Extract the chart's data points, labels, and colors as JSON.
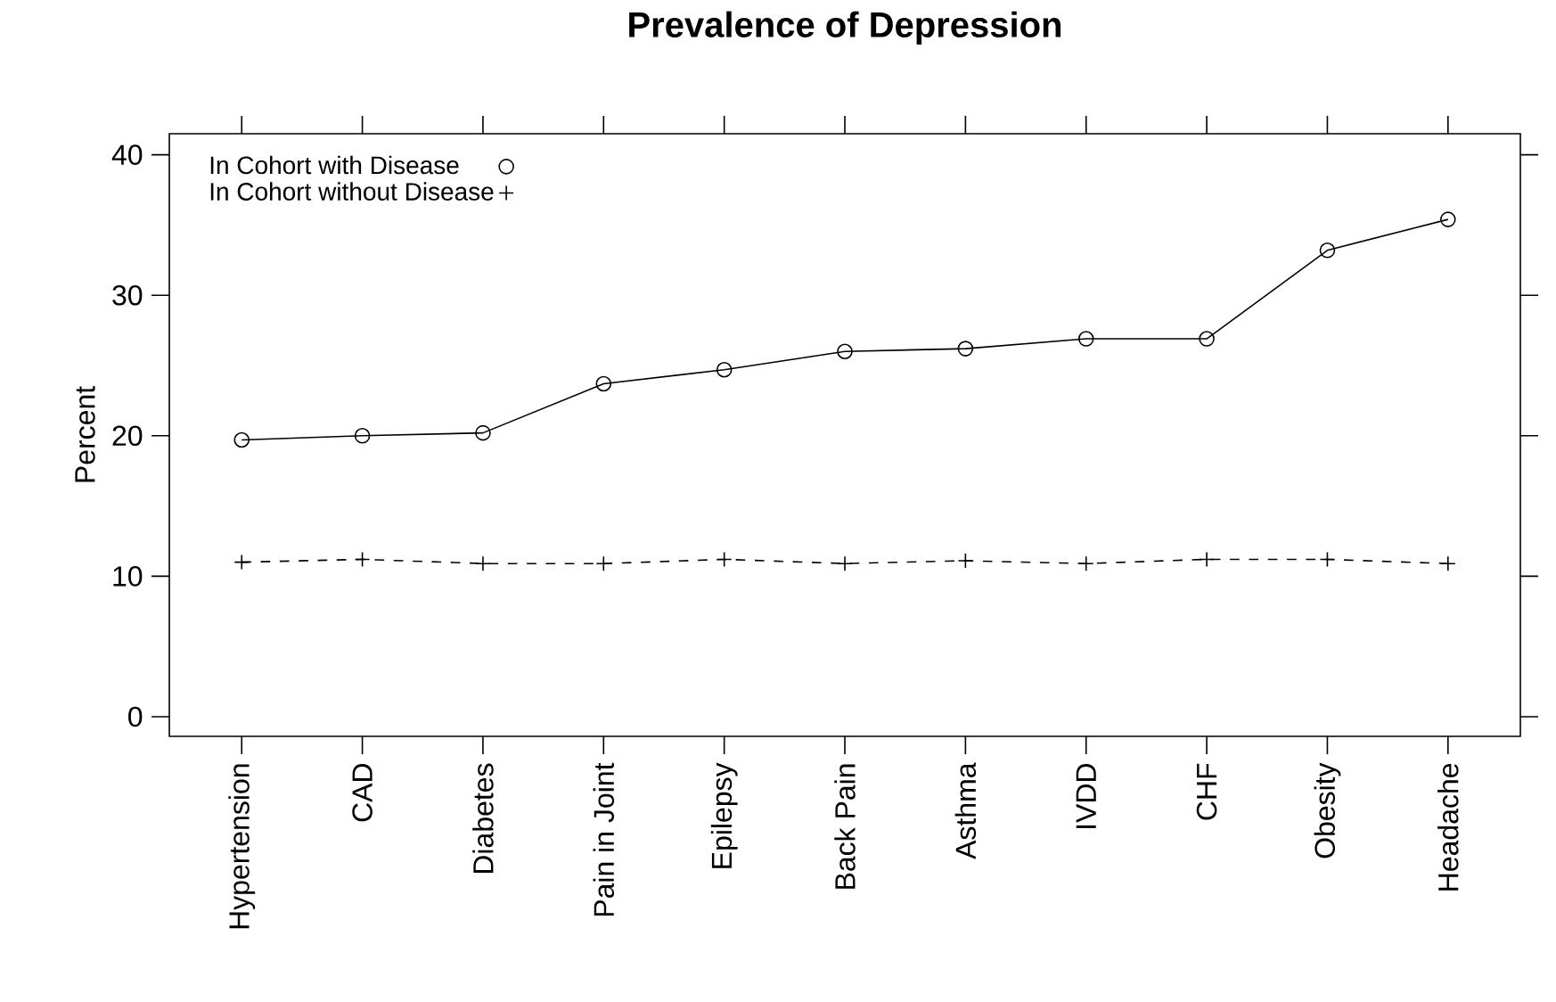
{
  "chart_data": {
    "type": "line",
    "title": "Prevalence of Depression",
    "ylabel": "Percent",
    "categories": [
      "Hypertension",
      "CAD",
      "Diabetes",
      "Pain in Joint",
      "Epilepsy",
      "Back Pain",
      "Asthma",
      "IVDD",
      "CHF",
      "Obesity",
      "Headache"
    ],
    "series": [
      {
        "name": "In Cohort with Disease",
        "color": "#000000",
        "marker": "circle",
        "line_style": "solid",
        "values": [
          19.7,
          20.0,
          20.2,
          23.7,
          24.7,
          26.0,
          26.2,
          26.9,
          26.9,
          33.2,
          35.4
        ]
      },
      {
        "name": "In Cohort without Disease",
        "color": "#000000",
        "marker": "cross",
        "line_style": "dashed",
        "values": [
          11.0,
          11.2,
          10.9,
          10.9,
          11.2,
          10.9,
          11.1,
          10.9,
          11.2,
          11.2,
          10.9
        ]
      }
    ],
    "ylim": [
      -1.4,
      41.5
    ],
    "yticks": [
      0,
      10,
      20,
      30,
      40
    ],
    "legend": "top left"
  }
}
